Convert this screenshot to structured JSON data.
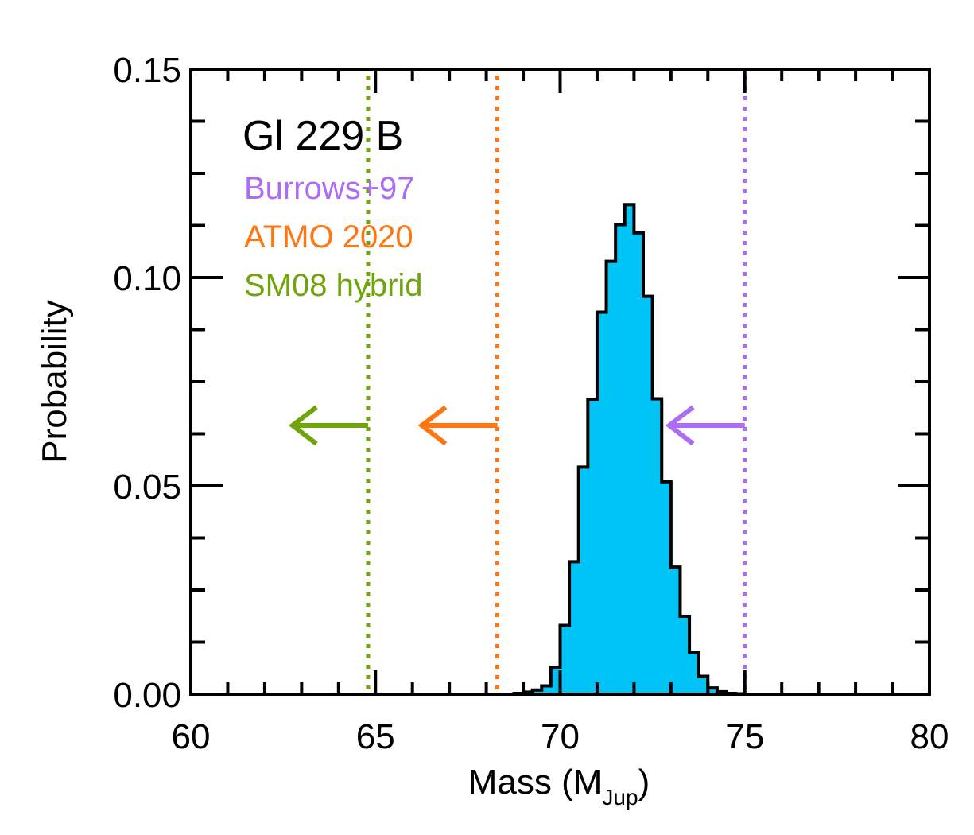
{
  "chart_data": {
    "type": "bar",
    "title": "Gl 229 B",
    "xlabel": "Mass (M",
    "xlabel_sub": "Jup",
    "xlabel_close": ")",
    "ylabel": "Probability",
    "xlim": [
      60,
      80
    ],
    "ylim": [
      0,
      0.15
    ],
    "xticks": [
      60,
      65,
      70,
      75,
      80
    ],
    "xtick_labels": [
      "60",
      "65",
      "70",
      "75",
      "80"
    ],
    "yticks": [
      0,
      0.05,
      0.1,
      0.15
    ],
    "ytick_labels": [
      "0.00",
      "0.05",
      "0.10",
      "0.15"
    ],
    "x_minor_step": 1,
    "y_minor_step": 0.0125,
    "histogram": {
      "bin_width": 0.25,
      "bin_edges_start": 68.75,
      "values": [
        0.0002,
        0.0005,
        0.001,
        0.002,
        0.0065,
        0.0165,
        0.0318,
        0.0545,
        0.0708,
        0.0917,
        0.1039,
        0.1127,
        0.1175,
        0.1107,
        0.0955,
        0.0709,
        0.051,
        0.0305,
        0.0187,
        0.0101,
        0.0043,
        0.0015,
        0.0006,
        0.0002,
        0.0001
      ],
      "fill_color": "#00c3f6",
      "edge_color": "#000000"
    },
    "series": [
      {
        "name": "Burrows+97",
        "limit_mass": 75.0,
        "color": "#ad6cf4",
        "arrow_y": 0.0645
      },
      {
        "name": "ATMO 2020",
        "limit_mass": 68.3,
        "color": "#ff7512",
        "arrow_y": 0.0645
      },
      {
        "name": "SM08 hybrid",
        "limit_mass": 64.8,
        "color": "#6fa50a",
        "arrow_y": 0.0645
      }
    ],
    "grid": false,
    "legend_placement": "top-left"
  }
}
